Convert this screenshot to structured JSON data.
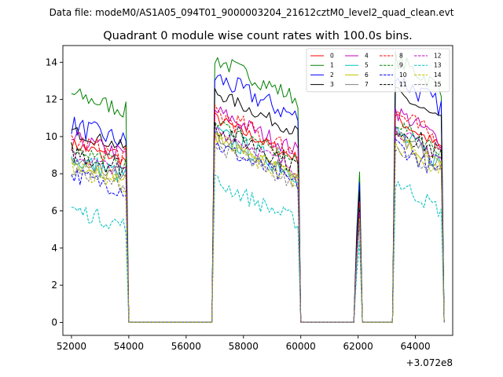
{
  "figure": {
    "suptitle": "Data file: modeM0/AS1A05_094T01_9000003204_21612cztM0_level2_quad_clean.evt",
    "title": "Quadrant 0 module wise count rates with 100.0s bins.",
    "x_offset_label": "+3.072e8"
  },
  "chart_data": {
    "type": "line",
    "title": "Quadrant 0 module wise count rates with 100.0s bins.",
    "xlabel": "",
    "ylabel": "",
    "x_offset": 307200000,
    "xlim": [
      51700,
      65300
    ],
    "ylim": [
      -0.7,
      14.9
    ],
    "xticks": [
      52000,
      54000,
      56000,
      58000,
      60000,
      62000,
      64000
    ],
    "xtick_labels": [
      "52000",
      "54000",
      "56000",
      "58000",
      "60000",
      "62000",
      "64000"
    ],
    "yticks": [
      0,
      2,
      4,
      6,
      8,
      10,
      12,
      14
    ],
    "ytick_labels": [
      "0",
      "2",
      "4",
      "6",
      "8",
      "10",
      "12",
      "14"
    ],
    "legend_position": "top-right",
    "legend_columns": 4,
    "segments": [
      {
        "start": 52000,
        "end": 53900,
        "tail": 54000
      },
      {
        "start": 57000,
        "end": 59900,
        "tail": 60000
      },
      {
        "start": 61950,
        "end": 62050,
        "tail": 62150
      },
      {
        "start": 63300,
        "end": 64900,
        "tail": 65000
      }
    ],
    "gaps_value": 0,
    "series": [
      {
        "name": "0",
        "color": "#ff0000",
        "dash": "solid",
        "level": 9.6,
        "peak": 11.0
      },
      {
        "name": "1",
        "color": "#008000",
        "dash": "solid",
        "level": 12.3,
        "peak": 14.2
      },
      {
        "name": "2",
        "color": "#0000ff",
        "dash": "solid",
        "level": 10.6,
        "peak": 13.2
      },
      {
        "name": "3",
        "color": "#000000",
        "dash": "solid",
        "level": 10.3,
        "peak": 12.4
      },
      {
        "name": "4",
        "color": "#bf00bf",
        "dash": "solid",
        "level": 9.9,
        "peak": 11.4
      },
      {
        "name": "5",
        "color": "#00bfbf",
        "dash": "solid",
        "level": 8.8,
        "peak": 10.2
      },
      {
        "name": "6",
        "color": "#bfbf00",
        "dash": "solid",
        "level": 8.6,
        "peak": 10.0
      },
      {
        "name": "7",
        "color": "#808080",
        "dash": "solid",
        "level": 8.7,
        "peak": 10.1
      },
      {
        "name": "8",
        "color": "#ff0000",
        "dash": "dashed",
        "level": 9.8,
        "peak": 11.3
      },
      {
        "name": "9",
        "color": "#008000",
        "dash": "dashed",
        "level": 9.4,
        "peak": 10.8
      },
      {
        "name": "10",
        "color": "#0000ff",
        "dash": "dashed",
        "level": 8.0,
        "peak": 9.6
      },
      {
        "name": "11",
        "color": "#000000",
        "dash": "dashed",
        "level": 9.2,
        "peak": 10.6
      },
      {
        "name": "12",
        "color": "#bf00bf",
        "dash": "dashed",
        "level": 9.0,
        "peak": 10.4
      },
      {
        "name": "13",
        "color": "#00bfbf",
        "dash": "dashed",
        "level": 6.1,
        "peak": 7.6
      },
      {
        "name": "14",
        "color": "#bfbf00",
        "dash": "dashed",
        "level": 8.4,
        "peak": 9.8
      },
      {
        "name": "15",
        "color": "#808080",
        "dash": "dashed",
        "level": 8.2,
        "peak": 9.5
      }
    ]
  }
}
